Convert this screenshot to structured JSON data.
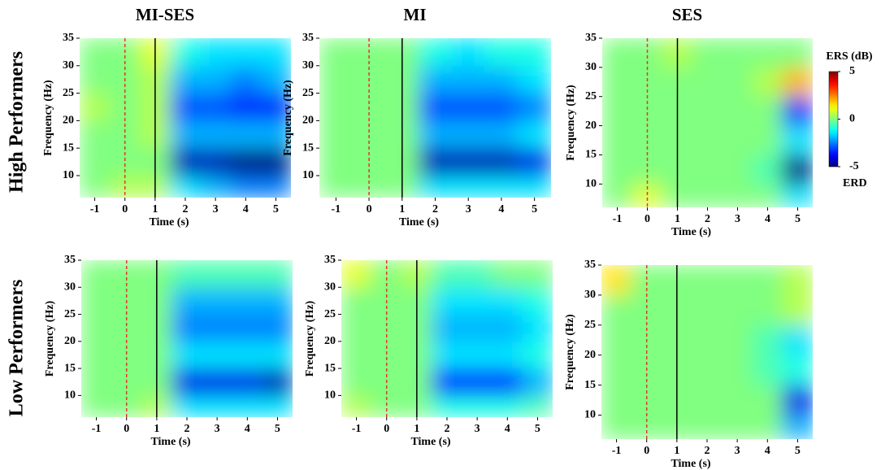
{
  "rows": [
    "High Performers",
    "Low Performers"
  ],
  "colorbar": {
    "label": "ERS (dB)",
    "bottom_label": "ERD",
    "lim": [
      -5,
      5
    ],
    "ticks": [
      5,
      0,
      -5
    ],
    "colormap": "jet"
  },
  "chart_data": [
    {
      "type": "heatmap",
      "title": "MI-SES",
      "xlabel": "Time (s)",
      "ylabel": "Frequency (Hz)",
      "colormap": "jet",
      "clim": [
        -5,
        5
      ],
      "xlim": [
        -1.5,
        5.5
      ],
      "ylim": [
        6,
        35
      ],
      "xticks": [
        -1,
        0,
        1,
        2,
        3,
        4,
        5
      ],
      "yticks": [
        10,
        15,
        20,
        25,
        30,
        35
      ],
      "xbins": [
        -1.5,
        -0.5,
        0.5,
        1.5,
        2.5,
        3.5,
        4.5,
        5.5
      ],
      "ybins": [
        6,
        10,
        15,
        20,
        25,
        30,
        35
      ],
      "values": [
        [
          0,
          0.5,
          0.5,
          -1.5,
          -2,
          -2.5,
          -2.5
        ],
        [
          0,
          0,
          0,
          -4.5,
          -4.5,
          -5,
          -5
        ],
        [
          0,
          0,
          0.5,
          -2,
          -2,
          -2,
          -2
        ],
        [
          0.5,
          0,
          0.5,
          -3,
          -3,
          -3.5,
          -3.5
        ],
        [
          0,
          0,
          0.5,
          -2,
          -2,
          -2.5,
          -2
        ],
        [
          0,
          0,
          1,
          -1,
          -1.5,
          -1.5,
          -1.5
        ]
      ],
      "vlines": [
        {
          "x": 0,
          "color": "#e03a2a",
          "style": "dashed"
        },
        {
          "x": 1,
          "color": "#000000",
          "style": "solid"
        }
      ]
    },
    {
      "type": "heatmap",
      "title": "MI",
      "xlabel": "Time (s)",
      "ylabel": "Frequency (Hz)",
      "colormap": "jet",
      "clim": [
        -5,
        5
      ],
      "xlim": [
        -1.5,
        5.5
      ],
      "ylim": [
        6,
        35
      ],
      "xticks": [
        -1,
        0,
        1,
        2,
        3,
        4,
        5
      ],
      "yticks": [
        10,
        15,
        20,
        25,
        30,
        35
      ],
      "xbins": [
        -1.5,
        -0.5,
        0.5,
        1.5,
        2.5,
        3.5,
        4.5,
        5.5
      ],
      "ybins": [
        6,
        10,
        15,
        20,
        25,
        30,
        35
      ],
      "values": [
        [
          0,
          0,
          0,
          -1.5,
          -1.5,
          -1.5,
          -1.5
        ],
        [
          0,
          0,
          0,
          -4.5,
          -4.5,
          -4.5,
          -4
        ],
        [
          0,
          0,
          0,
          -2,
          -2,
          -2,
          -1.5
        ],
        [
          0,
          0,
          0,
          -3,
          -3,
          -3,
          -2.5
        ],
        [
          0,
          0,
          0,
          -2,
          -2,
          -2,
          -1.5
        ],
        [
          0,
          0,
          0,
          -1,
          -1.5,
          -1,
          -1
        ]
      ],
      "vlines": [
        {
          "x": 0,
          "color": "#e03a2a",
          "style": "dashed"
        },
        {
          "x": 1,
          "color": "#000000",
          "style": "solid"
        }
      ]
    },
    {
      "type": "heatmap",
      "title": "SES",
      "xlabel": "Time (s)",
      "ylabel": "Frequency (Hz)",
      "colormap": "jet",
      "clim": [
        -5,
        5
      ],
      "xlim": [
        -1.5,
        5.5
      ],
      "ylim": [
        6,
        35
      ],
      "xticks": [
        -1,
        0,
        1,
        2,
        3,
        4,
        5
      ],
      "yticks": [
        10,
        15,
        20,
        25,
        30,
        35
      ],
      "xbins": [
        -1.5,
        -0.5,
        0.5,
        1.5,
        2.5,
        3.5,
        4.5,
        5.5
      ],
      "ybins": [
        6,
        10,
        15,
        20,
        25,
        30,
        35
      ],
      "values": [
        [
          0,
          1,
          0,
          0,
          0,
          0,
          -1.5
        ],
        [
          0,
          0,
          0,
          0,
          0,
          -0.5,
          -5
        ],
        [
          0,
          0,
          0,
          0,
          0,
          0,
          -1.5
        ],
        [
          0,
          0,
          0,
          0,
          0,
          0,
          -3.5
        ],
        [
          0,
          0,
          0,
          0,
          0,
          0.5,
          2
        ],
        [
          0,
          0,
          0.5,
          0,
          0,
          0,
          0
        ]
      ],
      "vlines": [
        {
          "x": 0,
          "color": "#e03a2a",
          "style": "dashed"
        },
        {
          "x": 1,
          "color": "#000000",
          "style": "solid"
        }
      ]
    },
    {
      "type": "heatmap",
      "xlabel": "Time (s)",
      "ylabel": "Frequency (Hz)",
      "colormap": "jet",
      "clim": [
        -5,
        5
      ],
      "xlim": [
        -1.5,
        5.5
      ],
      "ylim": [
        6,
        35
      ],
      "xticks": [
        -1,
        0,
        1,
        2,
        3,
        4,
        5
      ],
      "yticks": [
        10,
        15,
        20,
        25,
        30,
        35
      ],
      "xbins": [
        -1.5,
        -0.5,
        0.5,
        1.5,
        2.5,
        3.5,
        4.5,
        5.5
      ],
      "ybins": [
        6,
        10,
        15,
        20,
        25,
        30,
        35
      ],
      "values": [
        [
          0,
          0,
          0.5,
          -1.5,
          -1.5,
          -1.5,
          -1.5
        ],
        [
          0,
          0,
          0,
          -4,
          -4,
          -4,
          -4.5
        ],
        [
          0,
          0,
          0,
          -1.5,
          -1.5,
          -1.5,
          -1.5
        ],
        [
          0,
          0,
          0,
          -2.5,
          -2.5,
          -2.5,
          -2.5
        ],
        [
          0,
          0,
          0,
          -2,
          -2,
          -2,
          -2
        ],
        [
          0,
          0,
          0,
          -0.5,
          -0.5,
          -0.5,
          -0.5
        ]
      ],
      "vlines": [
        {
          "x": 0,
          "color": "#e03a2a",
          "style": "dashed"
        },
        {
          "x": 1,
          "color": "#000000",
          "style": "solid"
        }
      ]
    },
    {
      "type": "heatmap",
      "xlabel": "Time (s)",
      "ylabel": "Frequency (Hz)",
      "colormap": "jet",
      "clim": [
        -5,
        5
      ],
      "xlim": [
        -1.5,
        5.5
      ],
      "ylim": [
        6,
        35
      ],
      "xticks": [
        -1,
        0,
        1,
        2,
        3,
        4,
        5
      ],
      "yticks": [
        10,
        15,
        20,
        25,
        30,
        35
      ],
      "xbins": [
        -1.5,
        -0.5,
        0.5,
        1.5,
        2.5,
        3.5,
        4.5,
        5.5
      ],
      "ybins": [
        6,
        10,
        15,
        20,
        25,
        30,
        35
      ],
      "values": [
        [
          0.5,
          0,
          0,
          -1,
          -1,
          -1,
          -0.5
        ],
        [
          0,
          0,
          0,
          -3.5,
          -3.5,
          -3.5,
          -2
        ],
        [
          0,
          0,
          0,
          -1.5,
          -1.5,
          -1.5,
          -1
        ],
        [
          0,
          0,
          0,
          -2,
          -2,
          -2,
          -1.5
        ],
        [
          0,
          0,
          0,
          -1.5,
          -1.5,
          -1.5,
          -1
        ],
        [
          1,
          0,
          0.5,
          -0.5,
          -0.5,
          0,
          0
        ]
      ],
      "vlines": [
        {
          "x": 0,
          "color": "#e03a2a",
          "style": "dashed"
        },
        {
          "x": 1,
          "color": "#000000",
          "style": "solid"
        }
      ]
    },
    {
      "type": "heatmap",
      "xlabel": "Time (s)",
      "ylabel": "Frequency (Hz)",
      "colormap": "jet",
      "clim": [
        -5,
        5
      ],
      "xlim": [
        -1.5,
        5.5
      ],
      "ylim": [
        6,
        35
      ],
      "xticks": [
        -1,
        0,
        1,
        2,
        3,
        4,
        5
      ],
      "yticks": [
        10,
        15,
        20,
        25,
        30,
        35
      ],
      "xbins": [
        -1.5,
        -0.5,
        0.5,
        1.5,
        2.5,
        3.5,
        4.5,
        5.5
      ],
      "ybins": [
        6,
        10,
        15,
        20,
        25,
        30,
        35
      ],
      "values": [
        [
          0,
          0,
          0,
          0,
          0,
          0,
          -2
        ],
        [
          0,
          0,
          0,
          0,
          0,
          0,
          -4
        ],
        [
          0,
          0,
          0,
          0,
          0,
          -0.5,
          -1
        ],
        [
          0,
          0,
          0,
          0,
          0,
          -0.5,
          -1.5
        ],
        [
          0,
          0,
          0,
          0,
          0,
          0,
          0.5
        ],
        [
          1.5,
          0,
          0,
          0,
          0,
          0,
          0.5
        ]
      ],
      "vlines": [
        {
          "x": 0,
          "color": "#e03a2a",
          "style": "dashed"
        },
        {
          "x": 1,
          "color": "#000000",
          "style": "solid"
        }
      ]
    }
  ]
}
